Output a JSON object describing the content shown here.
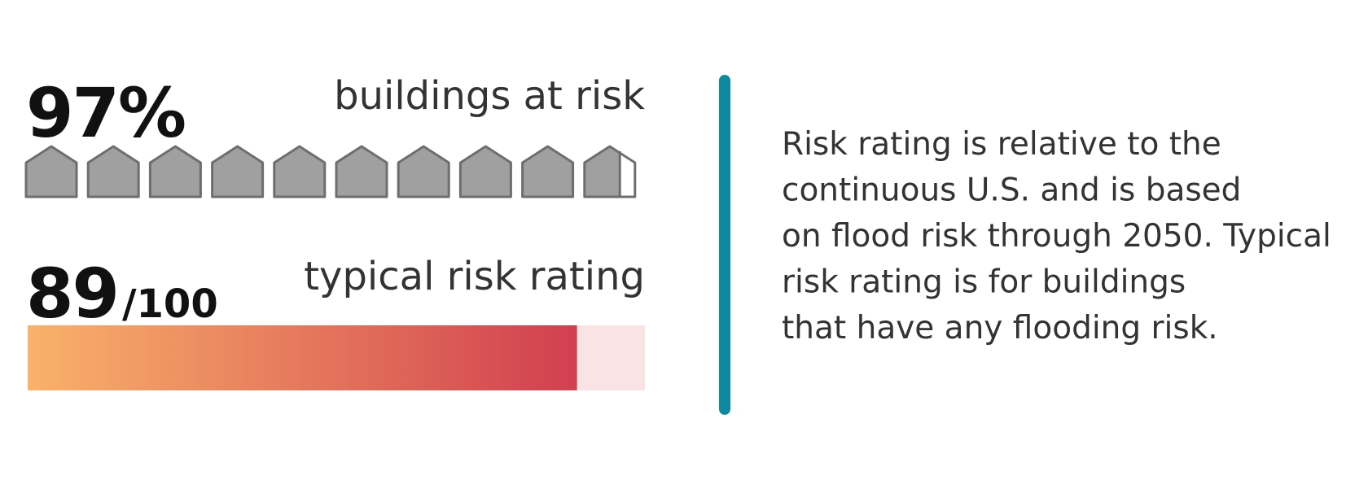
{
  "buildings": {
    "value": 97,
    "value_label": "97%",
    "label": "buildings at risk"
  },
  "rating": {
    "value": 89,
    "max": 100,
    "max_label": "/100",
    "label": "typical risk rating"
  },
  "note": [
    "Risk rating is relative to the",
    "continuous U.S. and is based",
    "on flood risk through 2050. Typical",
    "risk rating is for buildings",
    "that have any flooding risk."
  ]
}
